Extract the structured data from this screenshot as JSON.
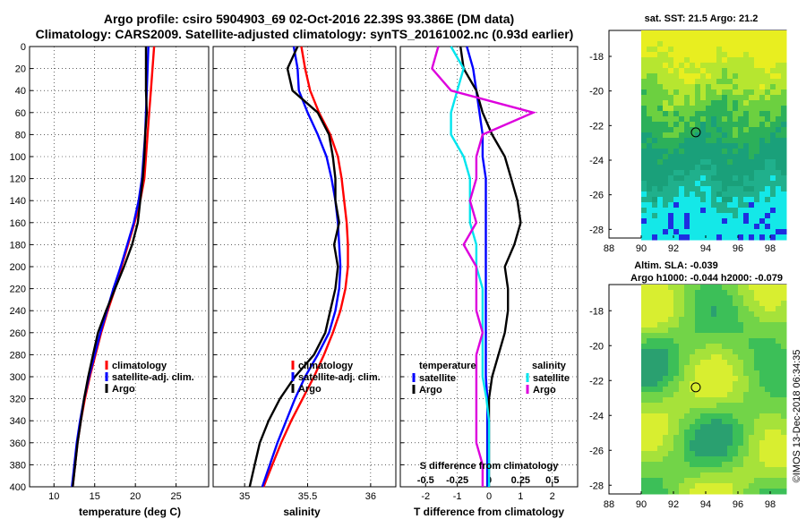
{
  "header": {
    "line1": "Argo profile: csiro 5904903_69 02-Oct-2016 22.39S 93.386E (DM data)",
    "line2": "Climatology: CARS2009. Satellite-adjusted climatology: synTS_20161002.nc (0.93d earlier)"
  },
  "copyright": "©IMOS 13-Dec-2018 06:34:35",
  "colors": {
    "climatology": "#ff0000",
    "satellite": "#0000ff",
    "argo": "#000000",
    "sat_salinity": "#00e5ee",
    "argo_salinity": "#dd00dd"
  },
  "chart_data": [
    {
      "type": "line",
      "panel": "temperature",
      "xlabel": "temperature (deg C)",
      "ylabel": "",
      "xlim": [
        7,
        29
      ],
      "ylim": [
        400,
        0
      ],
      "xticks": [
        "10",
        "15",
        "20",
        "25"
      ],
      "yticks": [
        "0",
        "20",
        "40",
        "60",
        "80",
        "100",
        "120",
        "140",
        "160",
        "180",
        "200",
        "220",
        "240",
        "260",
        "280",
        "300",
        "320",
        "340",
        "360",
        "380",
        "400"
      ],
      "legend": [
        "climatology",
        "satellite-adj. clim.",
        "Argo"
      ],
      "depth": [
        0,
        20,
        40,
        60,
        80,
        100,
        120,
        140,
        160,
        180,
        200,
        220,
        240,
        260,
        280,
        300,
        320,
        340,
        360,
        380,
        400
      ],
      "series": [
        {
          "name": "climatology",
          "values": [
            22.3,
            22.1,
            21.9,
            21.7,
            21.5,
            21.3,
            21.1,
            20.6,
            19.9,
            19.1,
            18.3,
            17.5,
            16.6,
            15.8,
            15.1,
            14.4,
            13.8,
            13.3,
            12.9,
            12.6,
            12.3
          ]
        },
        {
          "name": "satellite-adj. clim.",
          "values": [
            21.6,
            21.5,
            21.4,
            21.3,
            21.2,
            21.0,
            20.8,
            20.4,
            19.8,
            19.0,
            18.2,
            17.3,
            16.5,
            15.7,
            15.0,
            14.3,
            13.7,
            13.2,
            12.8,
            12.5,
            12.2
          ]
        },
        {
          "name": "Argo",
          "values": [
            21.3,
            21.3,
            21.3,
            21.4,
            21.2,
            21.1,
            20.9,
            20.6,
            20.3,
            19.6,
            18.6,
            17.5,
            16.4,
            15.4,
            14.8,
            14.2,
            13.7,
            13.3,
            12.9,
            12.6,
            12.3
          ]
        }
      ]
    },
    {
      "type": "line",
      "panel": "salinity",
      "xlabel": "salinity",
      "xlim": [
        34.75,
        36.2
      ],
      "ylim": [
        400,
        0
      ],
      "xticks": [
        "35",
        "35.5",
        "36"
      ],
      "legend": [
        "climatology",
        "satellite-adj. clim.",
        "Argo"
      ],
      "depth": [
        0,
        20,
        40,
        60,
        80,
        100,
        120,
        140,
        160,
        180,
        200,
        220,
        240,
        260,
        280,
        300,
        320,
        340,
        360,
        380,
        400
      ],
      "series": [
        {
          "name": "climatology",
          "values": [
            35.45,
            35.48,
            35.52,
            35.59,
            35.68,
            35.74,
            35.77,
            35.79,
            35.81,
            35.82,
            35.82,
            35.8,
            35.76,
            35.7,
            35.63,
            35.55,
            35.46,
            35.37,
            35.29,
            35.22,
            35.15
          ]
        },
        {
          "name": "satellite-adj. clim.",
          "values": [
            35.39,
            35.42,
            35.43,
            35.5,
            35.58,
            35.65,
            35.69,
            35.72,
            35.74,
            35.75,
            35.76,
            35.75,
            35.72,
            35.67,
            35.58,
            35.48,
            35.4,
            35.33,
            35.26,
            35.2,
            35.14
          ]
        },
        {
          "name": "Argo",
          "values": [
            35.42,
            35.34,
            35.38,
            35.58,
            35.67,
            35.7,
            35.72,
            35.72,
            35.75,
            35.71,
            35.74,
            35.72,
            35.68,
            35.64,
            35.55,
            35.4,
            35.28,
            35.19,
            35.12,
            35.08,
            35.04
          ]
        }
      ]
    },
    {
      "type": "line",
      "panel": "difference",
      "xlabel": "T difference from climatology",
      "xlabel_top": "S difference from climatology",
      "xlim": [
        -2.8,
        2.8
      ],
      "ylim": [
        400,
        0
      ],
      "xticks": [
        "-2",
        "-1",
        "0",
        "1",
        "2"
      ],
      "xticks_top": [
        "-0.5",
        "-0.25",
        "0",
        "0.25",
        "0.5"
      ],
      "legend_temperature": {
        "title": "temperature",
        "items": [
          "satellite",
          "Argo"
        ]
      },
      "legend_salinity": {
        "title": "salinity",
        "items": [
          "satellite",
          "Argo"
        ]
      },
      "depth": [
        0,
        20,
        40,
        60,
        80,
        100,
        120,
        140,
        160,
        180,
        200,
        220,
        240,
        260,
        280,
        300,
        320,
        340,
        360,
        380,
        400
      ],
      "series": [
        {
          "name": "T satellite",
          "values": [
            -0.7,
            -0.5,
            -0.4,
            -0.3,
            -0.2,
            -0.2,
            -0.1,
            -0.1,
            -0.1,
            -0.1,
            -0.1,
            -0.1,
            -0.1,
            -0.1,
            -0.1,
            -0.1,
            -0.05,
            -0.05,
            -0.05,
            -0.05,
            -0.05
          ]
        },
        {
          "name": "T Argo",
          "values": [
            -0.9,
            -0.8,
            -0.4,
            -0.2,
            0.1,
            0.5,
            0.7,
            0.9,
            1.0,
            0.8,
            0.5,
            0.6,
            0.6,
            0.5,
            0.3,
            0.1,
            0.0,
            0.0,
            0.0,
            0.0,
            0.0
          ]
        },
        {
          "name": "S satellite",
          "values": [
            -0.3,
            -0.2,
            -0.25,
            -0.3,
            -0.3,
            -0.2,
            -0.15,
            -0.15,
            -0.15,
            -0.1,
            -0.1,
            -0.05,
            -0.05,
            -0.05,
            -0.05,
            -0.05,
            -0.02,
            0.0,
            0.0,
            0.0,
            0.0
          ]
        },
        {
          "name": "S Argo",
          "values": [
            -0.4,
            -0.45,
            -0.3,
            0.35,
            -0.05,
            -0.1,
            -0.1,
            -0.15,
            -0.1,
            -0.2,
            -0.1,
            -0.1,
            -0.1,
            -0.05,
            -0.1,
            -0.1,
            -0.1,
            -0.1,
            -0.1,
            -0.05,
            -0.05
          ]
        }
      ]
    },
    {
      "type": "heatmap",
      "panel": "sst_map",
      "title": "sat. SST: 21.5 Argo: 21.2",
      "xlim": [
        88,
        99
      ],
      "ylim": [
        -28.5,
        -16.5
      ],
      "xticks": [
        "88",
        "90",
        "92",
        "94",
        "96",
        "98"
      ],
      "yticks": [
        "-18",
        "-20",
        "-22",
        "-24",
        "-26",
        "-28"
      ],
      "argo_position": {
        "lon": 93.386,
        "lat": -22.39
      }
    },
    {
      "type": "heatmap",
      "panel": "sla_map",
      "title_line1": "Altim. SLA: -0.039",
      "title_line2": "Argo h1000: -0.044 h2000: -0.079",
      "xlim": [
        88,
        99
      ],
      "ylim": [
        -28.5,
        -16.5
      ],
      "xticks": [
        "88",
        "90",
        "92",
        "94",
        "96",
        "98"
      ],
      "yticks": [
        "-18",
        "-20",
        "-22",
        "-24",
        "-26",
        "-28"
      ],
      "argo_position": {
        "lon": 93.386,
        "lat": -22.39
      }
    }
  ]
}
